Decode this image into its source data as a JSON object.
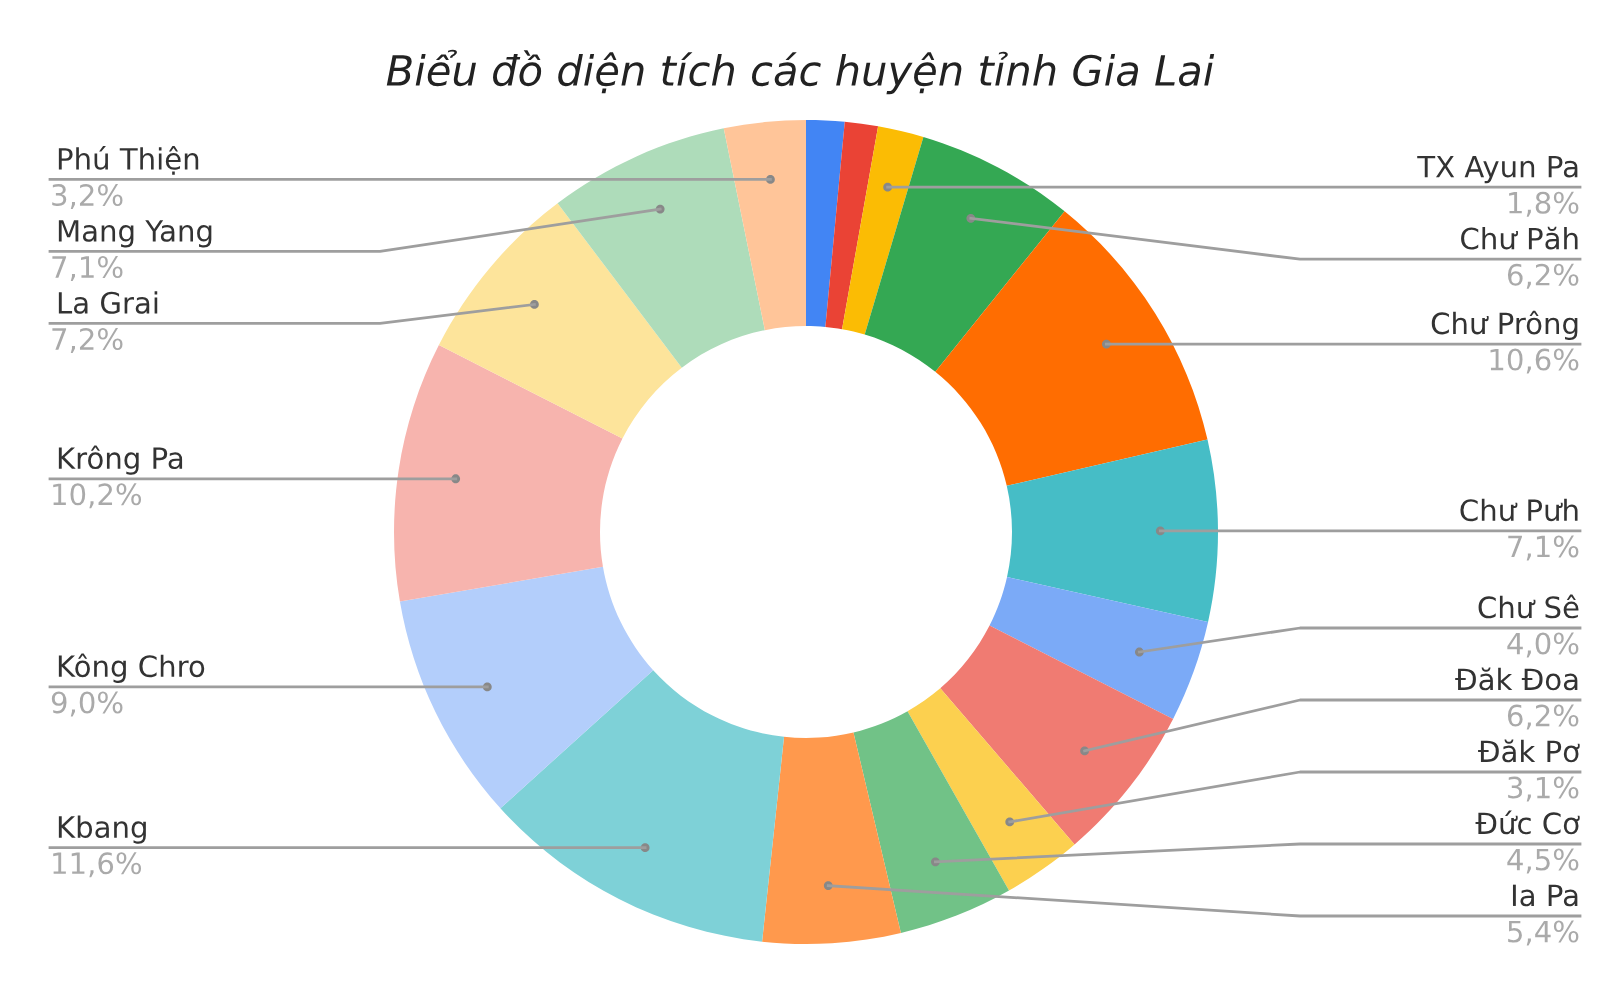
{
  "chart_data": {
    "type": "donut",
    "title": "Biểu đồ diện tích các huyện tỉnh Gia Lai",
    "categories": [
      null,
      null,
      "TX Ayun Pa",
      "Chư Păh",
      "Chư Prông",
      "Chư Pưh",
      "Chư Sê",
      "Đăk Đoa",
      "Đăk Pơ",
      "Đức Cơ",
      "Ia Pa",
      "Kbang",
      "Kông Chro",
      "Krông Pa",
      "La Grai",
      "Mang Yang",
      "Phú Thiện"
    ],
    "values": [
      1.5,
      1.3,
      1.8,
      6.2,
      10.6,
      7.1,
      4.0,
      6.2,
      3.1,
      4.5,
      5.4,
      11.6,
      9.0,
      10.2,
      7.2,
      7.1,
      3.2
    ],
    "value_labels": [
      null,
      null,
      "1,8%",
      "6,2%",
      "10,6%",
      "7,1%",
      "4,0%",
      "6,2%",
      "3,1%",
      "4,5%",
      "5,4%",
      "11,6%",
      "9,0%",
      "10,2%",
      "7,2%",
      "7,1%",
      "3,2%"
    ],
    "colors": [
      "#4285f4",
      "#ea4335",
      "#fbbc04",
      "#34a853",
      "#ff6d01",
      "#46bdc6",
      "#7baaf7",
      "#f07b72",
      "#fcd04f",
      "#71c287",
      "#ff994d",
      "#7ed1d7",
      "#b3cefb",
      "#f7b4ae",
      "#fde49b",
      "#aedcba",
      "#ffc599"
    ]
  }
}
